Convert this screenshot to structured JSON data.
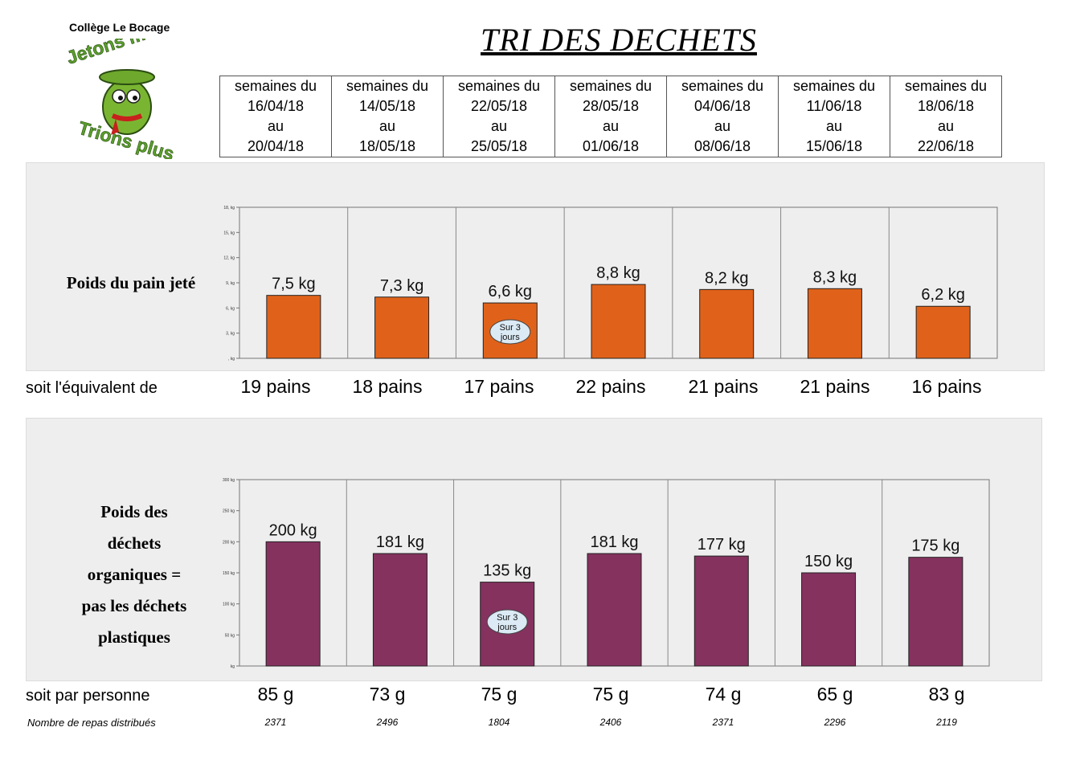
{
  "school": "Collège Le Bocage",
  "logo": {
    "line1": "Jetons moins",
    "line2": "Trions plus"
  },
  "title": "TRI DES DECHETS",
  "weeks": [
    {
      "line1": "semaines du",
      "line2": "16/04/18",
      "line3": "au",
      "line4": "20/04/18"
    },
    {
      "line1": "semaines du",
      "line2": "14/05/18",
      "line3": "au",
      "line4": "18/05/18"
    },
    {
      "line1": "semaines du",
      "line2": "22/05/18",
      "line3": "au",
      "line4": "25/05/18"
    },
    {
      "line1": "semaines du",
      "line2": "28/05/18",
      "line3": "au",
      "line4": "01/06/18"
    },
    {
      "line1": "semaines du",
      "line2": "04/06/18",
      "line3": "au",
      "line4": "08/06/18"
    },
    {
      "line1": "semaines du",
      "line2": "11/06/18",
      "line3": "au",
      "line4": "15/06/18"
    },
    {
      "line1": "semaines du",
      "line2": "18/06/18",
      "line3": "au",
      "line4": "22/06/18"
    }
  ],
  "row_labels": {
    "bread": "Poids du pain jeté",
    "organic": [
      "Poids des",
      "déchets",
      "organiques =",
      "pas les déchets",
      "plastiques"
    ],
    "equivalent": "soit l'équivalent de",
    "per_person": "soit par personne",
    "meals": "Nombre de repas distribués"
  },
  "equivalent_values": [
    "19 pains",
    "18 pains",
    "17 pains",
    "22 pains",
    "21 pains",
    "21 pains",
    "16 pains"
  ],
  "per_person_values": [
    "85 g",
    "73 g",
    "75 g",
    "75 g",
    "74 g",
    "65 g",
    "83 g"
  ],
  "meals_values": [
    "2371",
    "2496",
    "1804",
    "2406",
    "2371",
    "2296",
    "2119"
  ],
  "note": {
    "line1": "Sur 3",
    "line2": "jours"
  },
  "colors": {
    "bread_bar": "#e0621a",
    "organic_bar": "#85325f",
    "panel": "#eeeeee",
    "note_fill": "#dbeaf5"
  },
  "chart_data": [
    {
      "type": "bar",
      "title": "Poids du pain jeté",
      "categories": [
        "16/04/18 au 20/04/18",
        "14/05/18 au 18/05/18",
        "22/05/18 au 25/05/18",
        "28/05/18 au 01/06/18",
        "04/06/18 au 08/06/18",
        "11/06/18 au 15/06/18",
        "18/06/18 au 22/06/18"
      ],
      "values": [
        7.5,
        7.3,
        6.6,
        8.8,
        8.2,
        8.3,
        6.2
      ],
      "data_labels": [
        "7,5 kg",
        "7,3 kg",
        "6,6 kg",
        "8,8 kg",
        "8,2 kg",
        "8,3 kg",
        "6,2 kg"
      ],
      "yticks": [
        0,
        3,
        6,
        9,
        12,
        15,
        18
      ],
      "ytick_labels": [
        ", kg",
        "3, kg",
        "6, kg",
        "9, kg",
        "12, kg",
        "15, kg",
        "18, kg"
      ],
      "ylim": [
        0,
        18
      ],
      "note_index": 2
    },
    {
      "type": "bar",
      "title": "Poids des déchets organiques",
      "categories": [
        "16/04/18 au 20/04/18",
        "14/05/18 au 18/05/18",
        "22/05/18 au 25/05/18",
        "28/05/18 au 01/06/18",
        "04/06/18 au 08/06/18",
        "11/06/18 au 15/06/18",
        "18/06/18 au 22/06/18"
      ],
      "values": [
        200,
        181,
        135,
        181,
        177,
        150,
        175
      ],
      "data_labels": [
        "200 kg",
        "181 kg",
        "135 kg",
        "181 kg",
        "177 kg",
        "150 kg",
        "175 kg"
      ],
      "yticks": [
        0,
        50,
        100,
        150,
        200,
        250,
        300
      ],
      "ytick_labels": [
        "kg",
        "50 kg",
        "100 kg",
        "150 kg",
        "200 kg",
        "250 kg",
        "300 kg"
      ],
      "ylim": [
        0,
        300
      ],
      "note_index": 2
    }
  ]
}
